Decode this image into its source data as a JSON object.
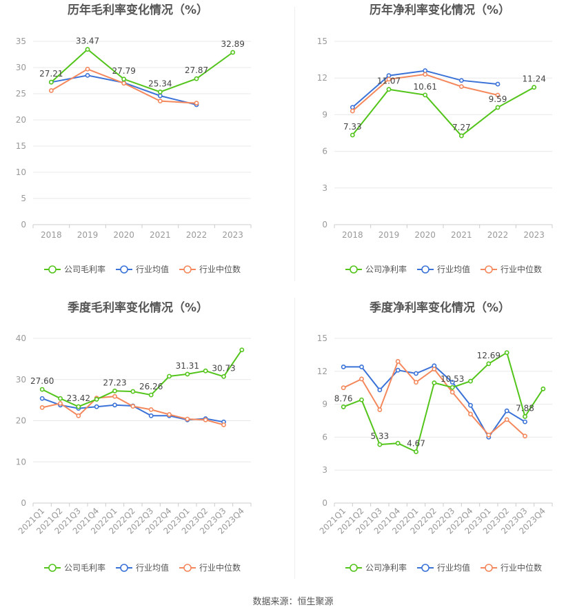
{
  "footer": {
    "source_label": "数据来源：恒生聚源"
  },
  "colors": {
    "company": "#52c41a",
    "industry_avg": "#3a72d8",
    "industry_median": "#f4875b",
    "grid": "#e8e8e8",
    "axis_text": "#999999",
    "title": "#555555"
  },
  "chart_data": [
    {
      "type": "line",
      "title": "历年毛利率变化情况（%）",
      "categories": [
        "2018",
        "2019",
        "2020",
        "2021",
        "2022",
        "2023"
      ],
      "ylim": [
        0,
        35
      ],
      "yticks": [
        0,
        5,
        10,
        15,
        20,
        25,
        30,
        35
      ],
      "grid": true,
      "legend_position": "bottom",
      "series": [
        {
          "name": "公司毛利率",
          "color": "#52c41a",
          "values": [
            27.21,
            33.47,
            27.79,
            25.34,
            27.87,
            32.89
          ],
          "labels": [
            "27.21",
            "33.47",
            "27.79",
            "25.34",
            "27.87",
            "32.89"
          ]
        },
        {
          "name": "行业均值",
          "color": "#3a72d8",
          "values": [
            27.2,
            28.5,
            27.1,
            24.6,
            22.9,
            null
          ]
        },
        {
          "name": "行业中位数",
          "color": "#f4875b",
          "values": [
            25.6,
            29.7,
            27.0,
            23.6,
            23.2,
            null
          ]
        }
      ]
    },
    {
      "type": "line",
      "title": "历年净利率变化情况（%）",
      "categories": [
        "2018",
        "2019",
        "2020",
        "2021",
        "2022",
        "2023"
      ],
      "ylim": [
        0,
        15
      ],
      "yticks": [
        0,
        3,
        6,
        9,
        12,
        15
      ],
      "grid": true,
      "legend_position": "bottom",
      "series": [
        {
          "name": "公司净利率",
          "color": "#52c41a",
          "values": [
            7.33,
            11.07,
            10.61,
            7.27,
            9.59,
            11.24
          ],
          "labels": [
            "7.33",
            "11.07",
            "10.61",
            "7.27",
            "9.59",
            "11.24"
          ]
        },
        {
          "name": "行业均值",
          "color": "#3a72d8",
          "values": [
            9.6,
            12.2,
            12.6,
            11.8,
            11.5,
            null
          ]
        },
        {
          "name": "行业中位数",
          "color": "#f4875b",
          "values": [
            9.3,
            11.9,
            12.3,
            11.3,
            10.6,
            null
          ]
        }
      ]
    },
    {
      "type": "line",
      "title": "季度毛利率变化情况（%）",
      "categories": [
        "2021Q1",
        "2021Q2",
        "2021Q3",
        "2021Q4",
        "2022Q1",
        "2022Q2",
        "2022Q3",
        "2022Q4",
        "2023Q1",
        "2023Q2",
        "2023Q3",
        "2023Q4"
      ],
      "ylim": [
        0,
        40
      ],
      "yticks": [
        0,
        10,
        20,
        30,
        40
      ],
      "grid": true,
      "legend_position": "bottom",
      "series": [
        {
          "name": "公司毛利率",
          "color": "#52c41a",
          "values": [
            27.6,
            25.4,
            23.42,
            25.2,
            27.23,
            27.1,
            26.26,
            30.8,
            31.31,
            32.1,
            30.73,
            37.2
          ],
          "labels": [
            "27.60",
            "",
            "23.42",
            "",
            "27.23",
            "",
            "26.26",
            "",
            "31.31",
            "",
            "30.73",
            ""
          ]
        },
        {
          "name": "行业均值",
          "color": "#3a72d8",
          "values": [
            25.4,
            23.8,
            23.0,
            23.4,
            23.8,
            23.6,
            21.2,
            21.2,
            20.2,
            20.5,
            19.7,
            null
          ]
        },
        {
          "name": "行业中位数",
          "color": "#f4875b",
          "values": [
            23.2,
            24.2,
            21.2,
            25.5,
            25.9,
            23.5,
            22.7,
            21.5,
            20.4,
            20.2,
            19.0,
            null
          ]
        }
      ]
    },
    {
      "type": "line",
      "title": "季度净利率变化情况（%）",
      "categories": [
        "2021Q1",
        "2021Q2",
        "2021Q3",
        "2021Q4",
        "2022Q1",
        "2022Q2",
        "2022Q3",
        "2022Q4",
        "2023Q1",
        "2023Q2",
        "2023Q3",
        "2023Q4"
      ],
      "ylim": [
        0,
        15
      ],
      "yticks": [
        0,
        3,
        6,
        9,
        12,
        15
      ],
      "grid": true,
      "legend_position": "bottom",
      "series": [
        {
          "name": "公司净利率",
          "color": "#52c41a",
          "values": [
            8.76,
            9.4,
            5.33,
            5.45,
            4.67,
            10.95,
            10.53,
            11.1,
            12.69,
            13.7,
            7.88,
            10.4
          ],
          "labels": [
            "8.76",
            "",
            "5.33",
            "",
            "4.67",
            "",
            "10.53",
            "",
            "12.69",
            "",
            "7.88",
            ""
          ]
        },
        {
          "name": "行业均值",
          "color": "#3a72d8",
          "values": [
            12.4,
            12.4,
            10.3,
            12.1,
            11.8,
            12.5,
            11.0,
            8.9,
            6.0,
            8.4,
            7.4,
            null
          ]
        },
        {
          "name": "行业中位数",
          "color": "#f4875b",
          "values": [
            10.5,
            11.3,
            8.5,
            12.9,
            11.0,
            12.2,
            10.1,
            8.1,
            6.2,
            7.6,
            6.1,
            null
          ]
        }
      ]
    }
  ]
}
